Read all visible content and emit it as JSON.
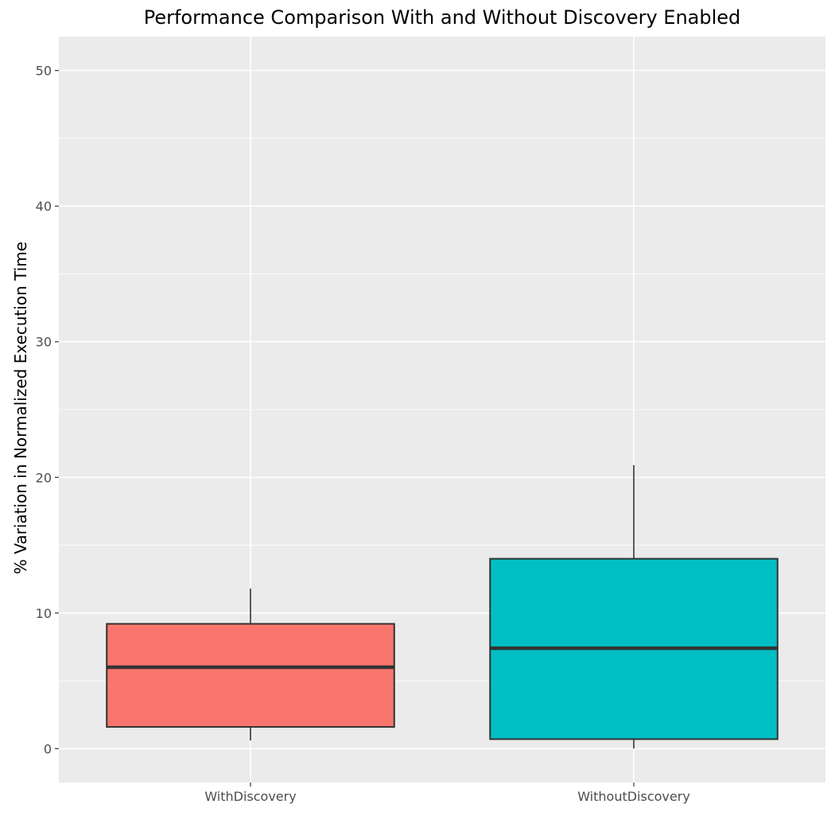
{
  "chart_data": {
    "type": "boxplot",
    "title": "Performance Comparison With and Without Discovery Enabled",
    "xlabel": "",
    "ylabel": "% Variation in Normalized Execution Time",
    "ylim": [
      -2.5,
      52.5
    ],
    "y_ticks": [
      0,
      10,
      20,
      30,
      40,
      50
    ],
    "categories": [
      "WithDiscovery",
      "WithoutDiscovery"
    ],
    "boxes": [
      {
        "category": "WithDiscovery",
        "whisker_low": 0.6,
        "q1": 1.6,
        "median": 6.0,
        "q3": 9.2,
        "whisker_high": 11.8,
        "fill": "#f8766d"
      },
      {
        "category": "WithoutDiscovery",
        "whisker_low": 0.0,
        "q1": 0.7,
        "median": 7.4,
        "q3": 14.0,
        "whisker_high": 20.9,
        "fill": "#00bfc4"
      }
    ],
    "panel_background": "#ebebeb",
    "grid": true,
    "legend": "none"
  }
}
